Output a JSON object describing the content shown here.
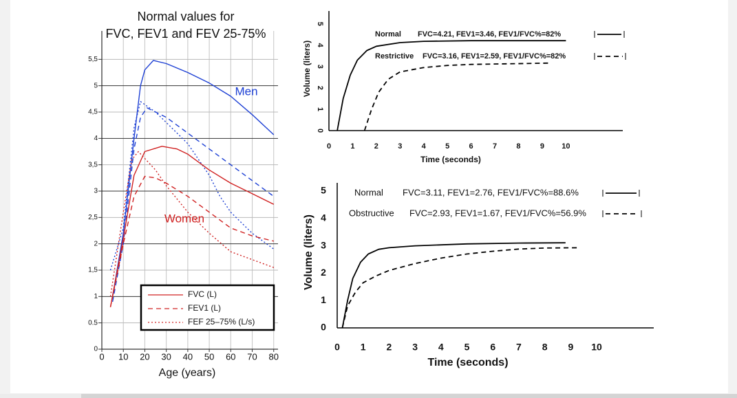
{
  "chart_data": [
    {
      "type": "line",
      "title": [
        "Normal values for",
        "FVC, FEV1 and FEV 25-75%"
      ],
      "x_label": "Age (years)",
      "xlim": [
        0,
        82
      ],
      "xticks": [
        0,
        10,
        20,
        30,
        40,
        50,
        60,
        70,
        80
      ],
      "ylim": [
        0,
        6
      ],
      "yticks": [
        0,
        0.5,
        1,
        {
          "value": 1.5,
          "label": "1,5"
        },
        2,
        {
          "value": 2.5,
          "label": "2,5"
        },
        3,
        {
          "value": 3.5,
          "label": "3,5"
        },
        4,
        {
          "value": 4.5,
          "label": "4,5"
        },
        5,
        {
          "value": 5.5,
          "label": "5,5"
        }
      ],
      "grid": true,
      "annotations": [
        {
          "text": "Men",
          "color": "#1c3fd4"
        },
        {
          "text": "Women",
          "color": "#d02020"
        }
      ],
      "legend": {
        "color": "#d02020",
        "entries": [
          {
            "name": "FVC (L)",
            "dash": "solid"
          },
          {
            "name": "FEV1 (L)",
            "dash": "dashed"
          },
          {
            "name": "FEF 25–75% (L/s)",
            "dash": "dotted"
          }
        ]
      },
      "series": [
        {
          "color": "#1c3fd4",
          "dash": "solid",
          "x": [
            5,
            10,
            15,
            18,
            20,
            24,
            30,
            40,
            50,
            60,
            70,
            80
          ],
          "values": [
            1.0,
            2.2,
            4.0,
            5.0,
            5.3,
            5.48,
            5.42,
            5.25,
            5.05,
            4.8,
            4.45,
            4.07
          ]
        },
        {
          "color": "#1c3fd4",
          "dash": "dashed",
          "x": [
            5,
            10,
            15,
            18,
            21,
            30,
            40,
            50,
            60,
            70,
            80
          ],
          "values": [
            0.9,
            2.0,
            3.8,
            4.4,
            4.58,
            4.4,
            4.1,
            3.8,
            3.5,
            3.2,
            2.9
          ]
        },
        {
          "color": "#1c3fd4",
          "dash": "dotted",
          "x": [
            4,
            10,
            15,
            18,
            25,
            30,
            40,
            50,
            55,
            60,
            70,
            80
          ],
          "values": [
            1.5,
            2.3,
            4.2,
            4.7,
            4.5,
            4.3,
            3.9,
            3.3,
            2.9,
            2.6,
            2.2,
            1.9
          ]
        },
        {
          "color": "#d02020",
          "dash": "solid",
          "x": [
            4,
            10,
            15,
            20,
            28,
            35,
            40,
            50,
            60,
            70,
            80
          ],
          "values": [
            0.8,
            2.1,
            3.3,
            3.75,
            3.85,
            3.8,
            3.7,
            3.4,
            3.15,
            2.95,
            2.75
          ]
        },
        {
          "color": "#d02020",
          "dash": "dashed",
          "x": [
            4,
            10,
            15,
            20,
            25,
            30,
            40,
            50,
            60,
            70,
            80
          ],
          "values": [
            0.8,
            2.0,
            2.9,
            3.28,
            3.25,
            3.15,
            2.9,
            2.6,
            2.3,
            2.15,
            2.05
          ]
        },
        {
          "color": "#d02020",
          "dash": "dotted",
          "x": [
            4,
            10,
            14,
            17,
            25,
            30,
            40,
            50,
            60,
            70,
            80
          ],
          "values": [
            1.0,
            2.6,
            3.6,
            3.75,
            3.4,
            3.1,
            2.6,
            2.2,
            1.85,
            1.7,
            1.55
          ]
        }
      ]
    },
    {
      "type": "line",
      "x_label": "Time (seconds)",
      "y_label": "Volume (liters)",
      "xlim": [
        0,
        12.4
      ],
      "xticks": [
        0,
        1,
        2,
        3,
        4,
        5,
        6,
        7,
        8,
        9,
        10
      ],
      "ylim": [
        0,
        5.6
      ],
      "yticks": [
        0,
        1,
        2,
        3,
        4,
        5
      ],
      "series": [
        {
          "name": "Normal",
          "note": "FVC=4.21, FEV1=3.46, FEV1/FVC%=82%",
          "color": "#000000",
          "dash": "solid",
          "x": [
            0.35,
            0.6,
            0.9,
            1.2,
            1.6,
            2,
            3,
            4,
            6,
            10
          ],
          "values": [
            0,
            1.5,
            2.6,
            3.3,
            3.75,
            3.95,
            4.12,
            4.18,
            4.21,
            4.21
          ]
        },
        {
          "name": "Restrictive",
          "note": "FVC=3.16, FEV1=2.59, FEV1/FVC%=82%",
          "color": "#000000",
          "dash": "dashed",
          "x": [
            1.5,
            1.8,
            2.1,
            2.5,
            3,
            4,
            5,
            6,
            9.3
          ],
          "values": [
            0,
            1.0,
            1.8,
            2.4,
            2.75,
            2.95,
            3.05,
            3.1,
            3.16
          ]
        }
      ]
    },
    {
      "type": "line",
      "x_label": "Time (seconds)",
      "y_label": "Volume (liters)",
      "xlim": [
        0,
        12.2
      ],
      "xticks": [
        0,
        1,
        2,
        3,
        4,
        5,
        6,
        7,
        8,
        9,
        10
      ],
      "ylim": [
        0,
        5.3
      ],
      "yticks": [
        0,
        1,
        2,
        3,
        4,
        5
      ],
      "series": [
        {
          "name": "Normal",
          "note": "FVC=3.11, FEV1=2.76, FEV1/FVC%=88.6%",
          "color": "#000000",
          "dash": "solid",
          "x": [
            0.2,
            0.4,
            0.6,
            0.9,
            1.2,
            1.6,
            2,
            3,
            5,
            7,
            8.8
          ],
          "values": [
            0,
            1.0,
            1.8,
            2.4,
            2.7,
            2.87,
            2.93,
            3.0,
            3.07,
            3.1,
            3.11
          ]
        },
        {
          "name": "Obstructive",
          "note": "FVC=2.93, FEV1=1.67, FEV1/FVC%=56.9%",
          "color": "#000000",
          "dash": "dashed",
          "x": [
            0.2,
            0.4,
            0.7,
            1,
            1.5,
            2,
            3,
            4,
            5,
            6,
            7,
            8,
            9.3
          ],
          "values": [
            0,
            0.8,
            1.3,
            1.65,
            1.9,
            2.1,
            2.35,
            2.55,
            2.7,
            2.8,
            2.88,
            2.92,
            2.93
          ]
        }
      ]
    }
  ]
}
